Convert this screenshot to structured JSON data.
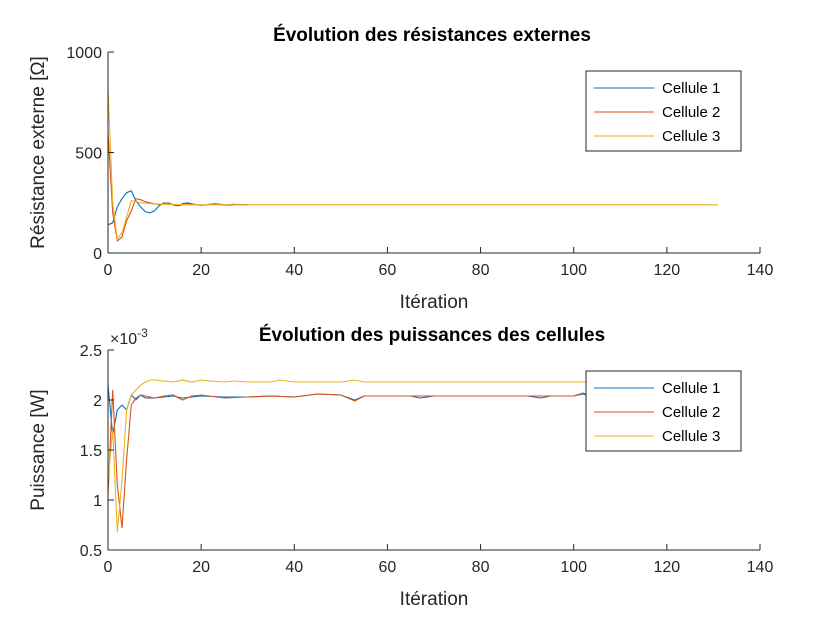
{
  "chart_data": [
    {
      "type": "line",
      "title": "Évolution des résistances externes",
      "xlabel": "Itération",
      "ylabel": "Résistance externe [Ω]",
      "xlim": [
        0,
        140
      ],
      "ylim": [
        0,
        1000
      ],
      "xticks": [
        0,
        20,
        40,
        60,
        80,
        100,
        120,
        140
      ],
      "yticks": [
        0,
        500,
        1000
      ],
      "grid": false,
      "legend": "top-right",
      "series": [
        {
          "name": "Cellule 1",
          "color": "#0072BD",
          "x": [
            0,
            1,
            2,
            3,
            4,
            5,
            6,
            7,
            8,
            9,
            10,
            11,
            12,
            13,
            14,
            15,
            16,
            17,
            18,
            19,
            20,
            21,
            22,
            23,
            24,
            25,
            26,
            27,
            28,
            29,
            30
          ],
          "y": [
            140,
            150,
            230,
            270,
            300,
            310,
            260,
            230,
            205,
            200,
            210,
            235,
            250,
            245,
            240,
            235,
            245,
            250,
            245,
            240,
            238,
            240,
            242,
            245,
            243,
            240,
            238,
            240,
            242,
            240,
            240
          ]
        },
        {
          "name": "Cellule 2",
          "color": "#D95319",
          "x": [
            0,
            1,
            2,
            3,
            4,
            5,
            6,
            7,
            8,
            9,
            10,
            11,
            12,
            13,
            14,
            15,
            16,
            17,
            18,
            19,
            20,
            21,
            22,
            23,
            24,
            25,
            26,
            27,
            28,
            29,
            30
          ],
          "y": [
            600,
            200,
            60,
            80,
            160,
            210,
            270,
            265,
            255,
            250,
            245,
            240,
            245,
            250,
            240,
            235,
            240,
            245,
            242,
            240,
            238,
            240,
            243,
            245,
            242,
            238,
            240,
            243,
            240,
            240,
            240
          ]
        },
        {
          "name": "Cellule 3",
          "color": "#EDB120",
          "x": [
            0,
            1,
            2,
            3,
            4,
            5,
            6,
            7,
            8,
            9,
            10,
            12,
            14,
            16,
            18,
            20,
            22,
            24,
            26,
            28,
            30,
            40,
            60,
            80,
            100,
            120,
            131
          ],
          "y": [
            820,
            250,
            70,
            100,
            180,
            260,
            255,
            250,
            248,
            246,
            244,
            243,
            242,
            241,
            240,
            240,
            240,
            240,
            240,
            240,
            240,
            240,
            240,
            240,
            240,
            240,
            240
          ]
        }
      ]
    },
    {
      "type": "line",
      "title": "Évolution des puissances des cellules",
      "xlabel": "Itération",
      "ylabel": "Puissance [W]",
      "exponent_label": "×10",
      "exponent_power": "-3",
      "xlim": [
        0,
        140
      ],
      "ylim": [
        0.5,
        2.5
      ],
      "xticks": [
        0,
        20,
        40,
        60,
        80,
        100,
        120,
        140
      ],
      "yticks": [
        0.5,
        1,
        1.5,
        2,
        2.5
      ],
      "grid": false,
      "legend": "top-right",
      "series": [
        {
          "name": "Cellule 1",
          "color": "#0072BD",
          "x": [
            0,
            1,
            2,
            3,
            4,
            5,
            6,
            7,
            8,
            10,
            12,
            14,
            16,
            18,
            20,
            25,
            30,
            35,
            40,
            45,
            50,
            53,
            55,
            60,
            65,
            67,
            70,
            80,
            90,
            93,
            95,
            100,
            102,
            104
          ],
          "y": [
            2.15,
            1.65,
            1.9,
            1.95,
            1.9,
            2.05,
            2.0,
            2.05,
            2.02,
            2.02,
            2.03,
            2.04,
            2.02,
            2.03,
            2.04,
            2.03,
            2.03,
            2.04,
            2.03,
            2.06,
            2.05,
            2.0,
            2.04,
            2.04,
            2.04,
            2.02,
            2.04,
            2.04,
            2.04,
            2.02,
            2.04,
            2.04,
            2.06,
            2.03
          ]
        },
        {
          "name": "Cellule 2",
          "color": "#D95319",
          "x": [
            0,
            1,
            2,
            3,
            4,
            5,
            6,
            7,
            8,
            10,
            12,
            14,
            16,
            18,
            20,
            25,
            30,
            35,
            40,
            45,
            50,
            53,
            55,
            60,
            70,
            80,
            90,
            100,
            102,
            104
          ],
          "y": [
            1.05,
            2.1,
            1.15,
            0.72,
            1.4,
            1.95,
            2.02,
            2.05,
            2.04,
            2.02,
            2.04,
            2.05,
            2.0,
            2.04,
            2.05,
            2.02,
            2.03,
            2.04,
            2.03,
            2.06,
            2.05,
            1.99,
            2.04,
            2.04,
            2.04,
            2.04,
            2.04,
            2.04,
            2.07,
            2.03
          ]
        },
        {
          "name": "Cellule 3",
          "color": "#EDB120",
          "x": [
            0,
            1,
            2,
            3,
            4,
            5,
            6,
            7,
            8,
            9,
            10,
            12,
            14,
            16,
            18,
            20,
            22,
            25,
            27,
            30,
            35,
            37,
            40,
            50,
            53,
            55,
            60,
            80,
            100,
            120,
            131
          ],
          "y": [
            1.2,
            1.7,
            0.68,
            1.2,
            1.9,
            2.05,
            2.1,
            2.15,
            2.18,
            2.2,
            2.2,
            2.19,
            2.18,
            2.2,
            2.18,
            2.2,
            2.19,
            2.18,
            2.19,
            2.18,
            2.18,
            2.2,
            2.18,
            2.18,
            2.2,
            2.18,
            2.18,
            2.18,
            2.18,
            2.18,
            2.18
          ]
        }
      ]
    }
  ]
}
